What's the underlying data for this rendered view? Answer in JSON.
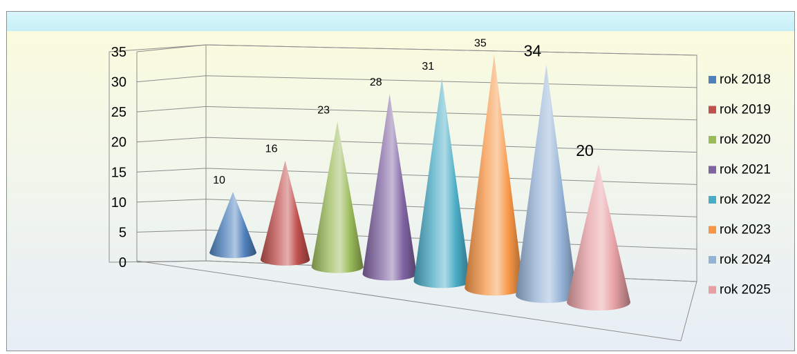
{
  "chart_data": {
    "type": "bar",
    "style": "3d-cone",
    "categories": [
      "rok 2018",
      "rok 2019",
      "rok 2020",
      "rok 2021",
      "rok 2022",
      "rok 2023",
      "rok 2024",
      "rok 2025"
    ],
    "values": [
      10,
      16,
      23,
      28,
      31,
      35,
      34,
      20
    ],
    "data_labels": [
      "10",
      "16",
      "23",
      "28",
      "31",
      "35",
      "34",
      "20"
    ],
    "ylim": [
      0,
      35
    ],
    "yticks": [
      "0",
      "5",
      "10",
      "15",
      "20",
      "25",
      "30",
      "35"
    ],
    "grid": true,
    "legend": "right",
    "colors": [
      "#4f81bd",
      "#c0504d",
      "#9bbb59",
      "#8064a2",
      "#4bacc6",
      "#f79646",
      "#95b3d7",
      "#e6a0a4"
    ]
  }
}
